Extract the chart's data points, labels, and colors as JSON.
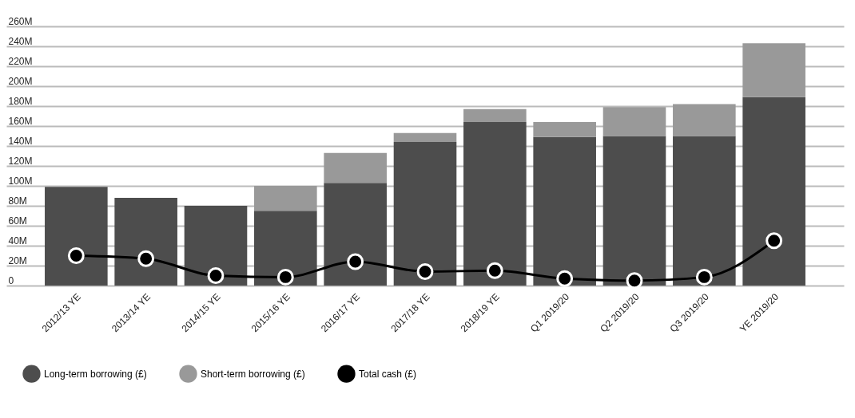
{
  "chart_data": {
    "type": "bar",
    "stacked": true,
    "categories": [
      "2012/13 YE",
      "2013/14 YE",
      "2014/15 YE",
      "2015/16 YE",
      "2016/17 YE",
      "2017/18 YE",
      "2018/19 YE",
      "Q1 2019/20",
      "Q2 2019/20",
      "Q3 2019/20",
      "YE 2019/20"
    ],
    "series": [
      {
        "name": "Long-term borrowing (£)",
        "color": "#4d4d4d",
        "values": [
          99,
          88,
          80,
          75,
          103,
          144,
          164,
          149,
          150,
          150,
          189
        ]
      },
      {
        "name": "Short-term borrowing (£)",
        "color": "#999999",
        "values": [
          0,
          0,
          0,
          25,
          30,
          9,
          13,
          15,
          29,
          32,
          54
        ]
      },
      {
        "name": "Total cash (£)",
        "type": "line",
        "color": "#000000",
        "marker": "circle",
        "values": [
          30,
          27,
          10,
          8.5,
          24,
          14,
          15,
          7,
          5,
          8.5,
          45
        ]
      }
    ],
    "ylim": [
      0,
      260
    ],
    "yticks": [
      0,
      {
        "value": 20,
        "label": "20M"
      },
      {
        "value": 40,
        "label": "40M"
      },
      {
        "value": 60,
        "label": "60M"
      },
      {
        "value": 80,
        "label": "80M"
      },
      {
        "value": 100,
        "label": "100M"
      },
      {
        "value": 120,
        "label": "120M"
      },
      {
        "value": 140,
        "label": "140M"
      },
      {
        "value": 160,
        "label": "160M"
      },
      {
        "value": 180,
        "label": "180M"
      },
      {
        "value": 200,
        "label": "200M"
      },
      {
        "value": 220,
        "label": "220M"
      },
      {
        "value": 240,
        "label": "240M"
      },
      {
        "value": 260,
        "label": "260M"
      }
    ],
    "grid": "y",
    "legend": "bottom"
  }
}
